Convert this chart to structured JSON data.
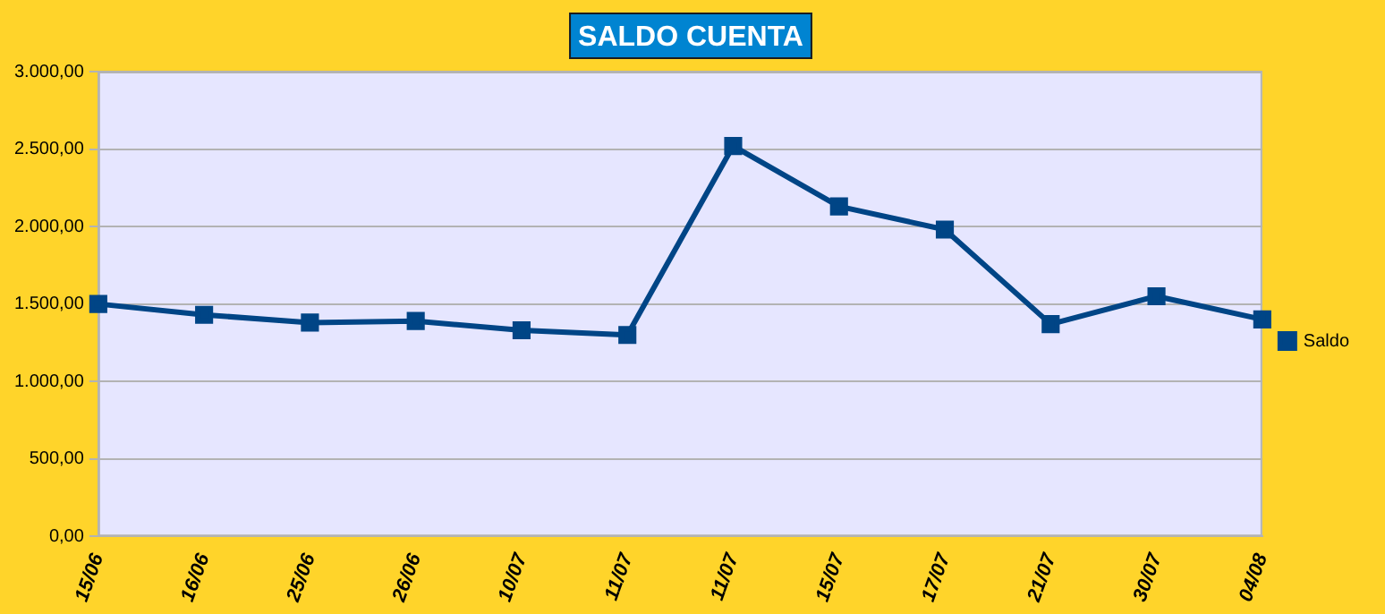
{
  "chart_data": {
    "type": "line",
    "title": "SALDO CUENTA",
    "categories": [
      "15/06",
      "16/06",
      "25/06",
      "26/06",
      "10/07",
      "11/07",
      "11/07",
      "15/07",
      "17/07",
      "21/07",
      "30/07",
      "04/08"
    ],
    "series": [
      {
        "name": "Saldo",
        "color": "#004586",
        "values": [
          1500,
          1430,
          1380,
          1390,
          1330,
          1300,
          2520,
          2130,
          1980,
          1370,
          1550,
          1400
        ]
      }
    ],
    "ylim": [
      0,
      3000
    ],
    "yticks": [
      {
        "value": 0,
        "label": "0,00"
      },
      {
        "value": 500,
        "label": "500,00"
      },
      {
        "value": 1000,
        "label": "1.000,00"
      },
      {
        "value": 1500,
        "label": "1.500,00"
      },
      {
        "value": 2000,
        "label": "2.000,00"
      },
      {
        "value": 2500,
        "label": "2.500,00"
      },
      {
        "value": 3000,
        "label": "3.000,00"
      }
    ],
    "grid": "y",
    "legend": "right",
    "marker": "square",
    "line_style": "solid"
  }
}
